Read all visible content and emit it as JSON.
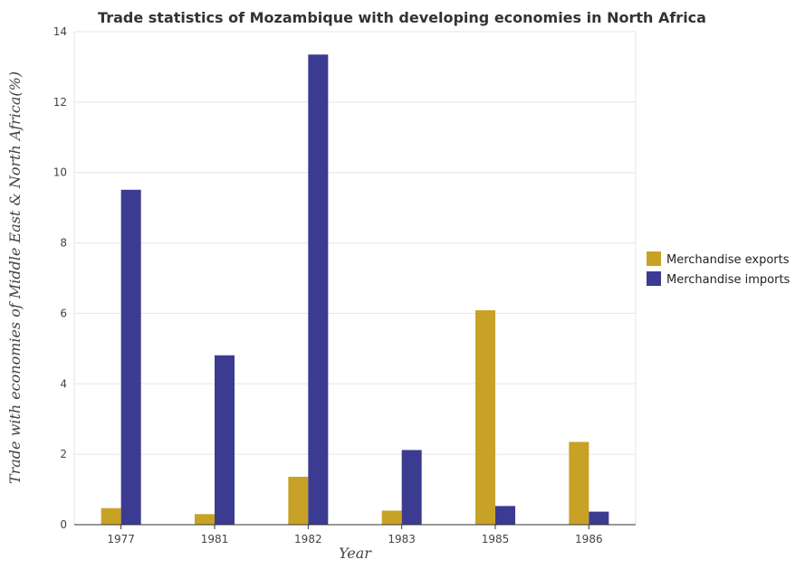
{
  "chart_data": {
    "type": "bar",
    "title": "Trade statistics of Mozambique with developing economies in North Africa",
    "xlabel": "Year",
    "ylabel": "Trade with economies of Middle East & North Africa(%)",
    "categories": [
      "1977",
      "1981",
      "1982",
      "1983",
      "1985",
      "1986"
    ],
    "series": [
      {
        "name": "Merchandise exports",
        "color": "#c8a227",
        "values": [
          0.47,
          0.3,
          1.36,
          0.4,
          6.09,
          2.35
        ]
      },
      {
        "name": "Merchandise imports",
        "color": "#3b3b91",
        "values": [
          9.51,
          4.81,
          13.35,
          2.12,
          0.53,
          0.37
        ]
      }
    ],
    "ylim": [
      0,
      14
    ],
    "yticks": [
      "0",
      "2",
      "4",
      "6",
      "8",
      "10",
      "12",
      "14"
    ],
    "grid": true,
    "legend_position": "right"
  }
}
